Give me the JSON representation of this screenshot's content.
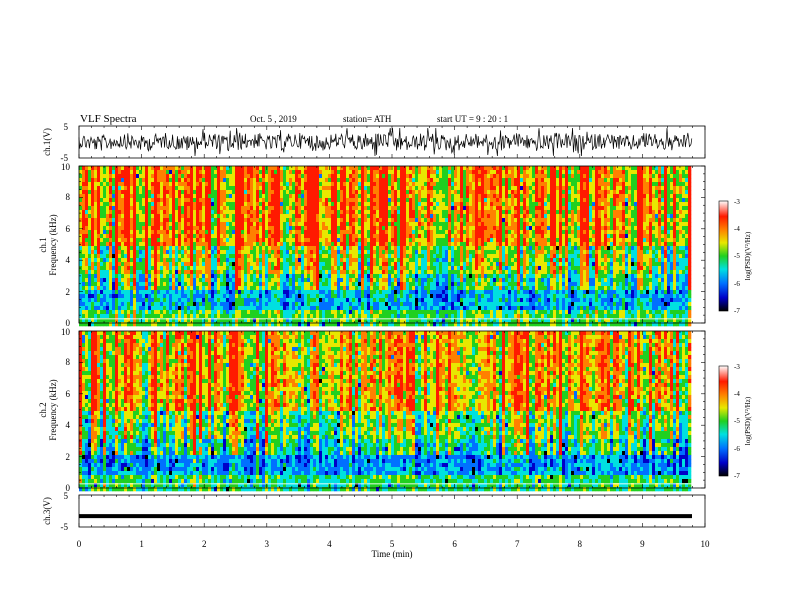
{
  "header": {
    "title": "VLF Spectra",
    "date": "Oct. 5 , 2019",
    "station": "station= ATH",
    "start": "start UT = 9 : 20 : 1"
  },
  "chart_data": {
    "type": "heatmap",
    "xlabel": "Time (min)",
    "xlim": [
      0,
      10
    ],
    "xticks": [
      "0",
      "1",
      "2",
      "3",
      "4",
      "5",
      "6",
      "7",
      "8",
      "9",
      "10"
    ],
    "panels": [
      {
        "id": "ch1-waveform",
        "type": "line",
        "ylabel": "ch.1(V)",
        "ylim": [
          -5,
          5
        ],
        "yticks": [
          "5",
          "-5"
        ],
        "trace_color": "#000000"
      },
      {
        "id": "ch1-spectrogram",
        "type": "heatmap",
        "ylabel_channel": "ch.1",
        "ylabel": "Frequency (kHz)",
        "ylim": [
          0,
          10
        ],
        "yticks": [
          "0",
          "2",
          "4",
          "6",
          "8",
          "10"
        ],
        "colorbar_label": "log(PSD)(V²/Hz)",
        "colorbar_ticks": [
          "-3",
          "-4",
          "-5",
          "-6",
          "-7"
        ],
        "colorbar_range": [
          -7,
          -3
        ]
      },
      {
        "id": "ch2-spectrogram",
        "type": "heatmap",
        "ylabel_channel": "ch.2",
        "ylabel": "Frequency (kHz)",
        "ylim": [
          0,
          10
        ],
        "yticks": [
          "0",
          "2",
          "4",
          "6",
          "8",
          "10"
        ],
        "colorbar_label": "log(PSD)(V²/Hz)",
        "colorbar_ticks": [
          "-3",
          "-4",
          "-5",
          "-6",
          "-7"
        ],
        "colorbar_range": [
          -7,
          -3
        ]
      },
      {
        "id": "ch3-waveform",
        "type": "line",
        "ylabel": "ch.3(V)",
        "ylim": [
          -5,
          5
        ],
        "yticks": [
          "5",
          "-5"
        ],
        "constant_value": -1.6,
        "trace_color": "#000000"
      }
    ],
    "colormap": [
      "#000000",
      "#0000c8",
      "#0070ff",
      "#00e0e0",
      "#20d020",
      "#e8e800",
      "#ff8000",
      "#ff1a00",
      "#ffffff"
    ]
  }
}
